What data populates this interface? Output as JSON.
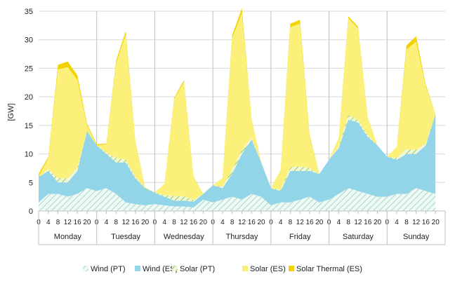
{
  "chart_data": {
    "type": "area",
    "stacked": true,
    "ylabel": "[GW]",
    "ylim": [
      0,
      35
    ],
    "yticks": [
      0,
      5,
      10,
      15,
      20,
      25,
      30,
      35
    ],
    "grid": "horizontal",
    "legend_position": "bottom",
    "hour_tick_labels": [
      "0",
      "4",
      "8",
      "12",
      "16",
      "20"
    ],
    "days": [
      "Monday",
      "Tuesday",
      "Wednesday",
      "Thursday",
      "Friday",
      "Saturday",
      "Sunday"
    ],
    "x_hours": [
      0,
      4,
      8,
      12,
      16,
      20,
      24,
      28,
      32,
      36,
      40,
      44,
      48,
      52,
      56,
      60,
      64,
      68,
      72,
      76,
      80,
      84,
      88,
      92,
      96,
      100,
      104,
      108,
      112,
      116,
      120,
      124,
      128,
      132,
      136,
      140,
      144,
      148,
      152,
      156,
      160,
      164
    ],
    "series": [
      {
        "name": "Wind (PT)",
        "color": "#d5ece6",
        "pattern": "hatch",
        "values": [
          1.5,
          3.0,
          3.0,
          2.5,
          3.0,
          4.0,
          3.5,
          4.0,
          3.0,
          1.5,
          1.2,
          1.0,
          1.2,
          1.0,
          0.8,
          0.8,
          0.6,
          2.0,
          1.5,
          2.0,
          2.5,
          2.0,
          3.0,
          2.5,
          1.0,
          1.5,
          1.5,
          2.0,
          2.5,
          1.5,
          2.0,
          3.0,
          4.0,
          3.5,
          3.0,
          2.5,
          2.5,
          3.0,
          3.0,
          4.0,
          3.5,
          3.0
        ]
      },
      {
        "name": "Wind (ES)",
        "color": "#92d4e8",
        "pattern": "solid",
        "values": [
          4.5,
          4.0,
          2.0,
          2.5,
          4.0,
          10.0,
          8.0,
          6.0,
          5.5,
          7.0,
          4.5,
          3.0,
          2.0,
          1.5,
          1.0,
          1.0,
          1.0,
          1.0,
          3.0,
          2.0,
          4.0,
          8.0,
          9.5,
          6.0,
          3.0,
          2.0,
          5.5,
          5.0,
          4.5,
          5.0,
          7.0,
          8.0,
          12.0,
          12.0,
          10.0,
          9.0,
          7.0,
          6.0,
          7.0,
          6.0,
          8.0,
          14.0
        ]
      },
      {
        "name": "Solar (PT)",
        "color": "#c8e68c",
        "pattern": "hatch",
        "values": [
          0,
          0.3,
          0.8,
          0.7,
          0.5,
          0,
          0,
          0.2,
          0.8,
          0.5,
          0.2,
          0,
          0,
          0.3,
          0.8,
          0.8,
          0.3,
          0,
          0,
          0.3,
          0.8,
          0.7,
          0.3,
          0,
          0,
          0.2,
          0.7,
          0.8,
          0.5,
          0,
          0,
          0.3,
          0.8,
          0.5,
          0.3,
          0,
          0,
          0.3,
          0.8,
          0.7,
          0.3,
          0
        ]
      },
      {
        "name": "Solar (ES)",
        "color": "#fbf07a",
        "pattern": "solid",
        "values": [
          0,
          2.0,
          19.0,
          19.5,
          15.5,
          1.0,
          0,
          1.5,
          16.5,
          22.0,
          6.0,
          0,
          0,
          2.0,
          17.0,
          20.0,
          4.0,
          0,
          0,
          1.5,
          23.0,
          24.0,
          3.0,
          0,
          0,
          3.5,
          24.5,
          25.0,
          5.5,
          0,
          0,
          1.5,
          17.0,
          16.0,
          3.0,
          0,
          0,
          2.0,
          17.5,
          19.0,
          10.0,
          0
        ]
      },
      {
        "name": "Solar Thermal (ES)",
        "color": "#f2d200",
        "pattern": "solid",
        "values": [
          0.5,
          0.2,
          0.8,
          1.0,
          0.8,
          0.3,
          0.2,
          0.1,
          0.5,
          0.5,
          0.2,
          0.1,
          0,
          0,
          0.2,
          0.3,
          0.1,
          0,
          0,
          0,
          0.5,
          0.8,
          0.2,
          0,
          0,
          0,
          0.6,
          0.7,
          0.3,
          0,
          0,
          0,
          0.3,
          0.3,
          0.1,
          0,
          0,
          0,
          0.7,
          0.9,
          0.3,
          0
        ]
      }
    ]
  }
}
